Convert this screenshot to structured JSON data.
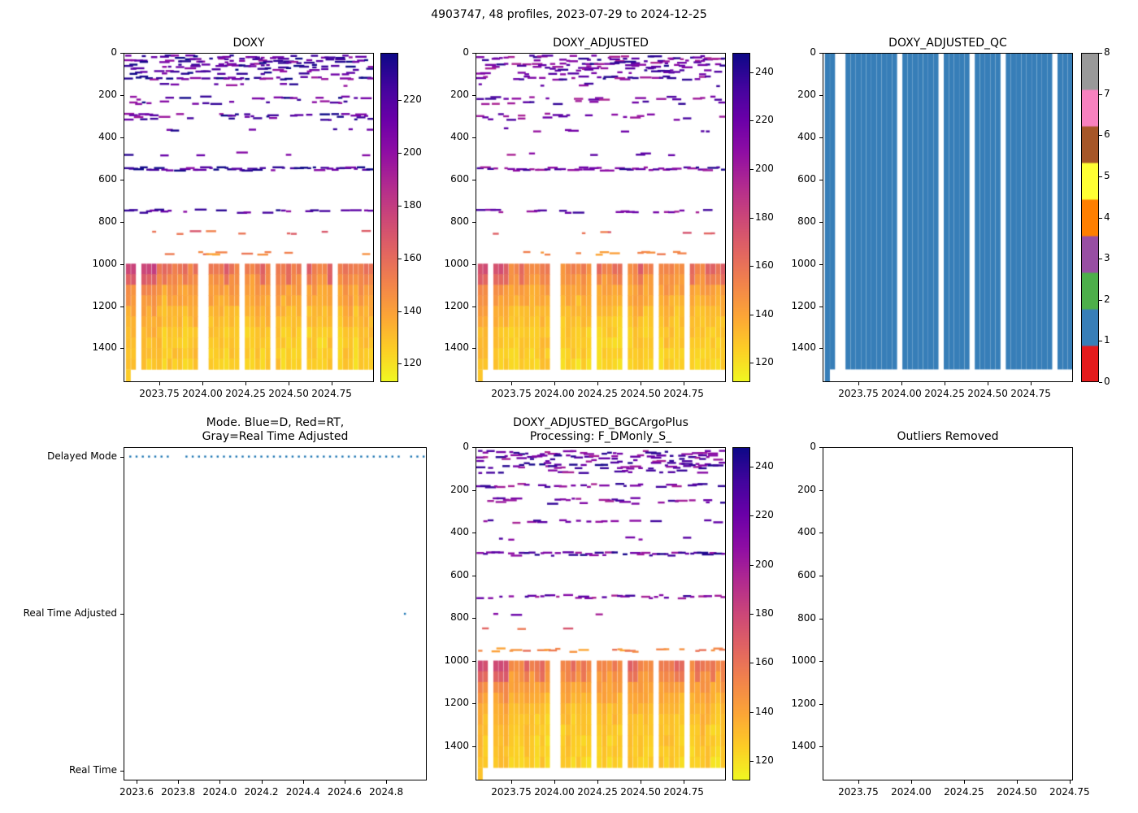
{
  "figure": {
    "title": "4903747, 48 profiles, 2023-07-29 to 2024-12-25",
    "background": "#ffffff",
    "text_color": "#000000"
  },
  "chart_data": [
    {
      "id": "doxy",
      "type": "heatmap",
      "title": "DOXY",
      "colormap": "plasma_r",
      "x": {
        "lim": [
          2023.5425,
          2024.995
        ],
        "tick_values": [
          2023.75,
          2024.0,
          2024.25,
          2024.5,
          2024.75
        ],
        "ticks": [
          "2023.75",
          "2024.00",
          "2024.25",
          "2024.50",
          "2024.75"
        ]
      },
      "y": {
        "lim": [
          0,
          1560
        ],
        "tick_values": [
          0,
          200,
          400,
          600,
          800,
          1000,
          1200,
          1400
        ],
        "ticks": [
          "0",
          "200",
          "400",
          "600",
          "800",
          "1000",
          "1200",
          "1400"
        ]
      },
      "colorbar": {
        "vmin": 113,
        "vmax": 238,
        "ticks": [
          120,
          140,
          160,
          180,
          200,
          220
        ]
      },
      "profiles": {
        "n": 48,
        "t0": 2023.57,
        "t1": 2024.98,
        "missing": [
          2,
          14,
          15,
          22,
          28,
          34,
          40
        ]
      },
      "shallow_dash_rows": [
        [
          20,
          0.5,
          195,
          245
        ],
        [
          35,
          0.55,
          195,
          245
        ],
        [
          50,
          0.5,
          195,
          245
        ],
        [
          65,
          0.5,
          200,
          245
        ],
        [
          80,
          0.45,
          195,
          240
        ],
        [
          95,
          0.4,
          195,
          240
        ],
        [
          120,
          0.62,
          195,
          245
        ],
        [
          150,
          0.18,
          195,
          240
        ],
        [
          215,
          0.38,
          195,
          240
        ],
        [
          235,
          0.3,
          195,
          240
        ],
        [
          295,
          0.45,
          195,
          240
        ],
        [
          310,
          0.22,
          195,
          240
        ],
        [
          365,
          0.12,
          195,
          235
        ],
        [
          480,
          0.07,
          195,
          235
        ],
        [
          550,
          0.92,
          200,
          245
        ],
        [
          750,
          0.55,
          195,
          240
        ],
        [
          850,
          0.12,
          150,
          175
        ],
        [
          950,
          0.18,
          138,
          158
        ]
      ],
      "deep_bands": [
        [
          1000,
          1050,
          152,
          176
        ],
        [
          1050,
          1100,
          146,
          166
        ],
        [
          1100,
          1150,
          141,
          150
        ],
        [
          1150,
          1200,
          137,
          144
        ],
        [
          1200,
          1250,
          133,
          140
        ],
        [
          1250,
          1300,
          130,
          136
        ],
        [
          1300,
          1350,
          128,
          133
        ],
        [
          1350,
          1400,
          127,
          131
        ],
        [
          1400,
          1450,
          126,
          130
        ],
        [
          1450,
          1500,
          125,
          129
        ]
      ],
      "first_profile_bottom": 1560,
      "seed": 11
    },
    {
      "id": "doxy-adjusted",
      "type": "heatmap",
      "title": "DOXY_ADJUSTED",
      "colormap": "plasma_r",
      "x": {
        "lim": [
          2023.5425,
          2024.995
        ],
        "tick_values": [
          2023.75,
          2024.0,
          2024.25,
          2024.5,
          2024.75
        ],
        "ticks": [
          "2023.75",
          "2024.00",
          "2024.25",
          "2024.50",
          "2024.75"
        ]
      },
      "y": {
        "lim": [
          0,
          1560
        ],
        "tick_values": [
          0,
          200,
          400,
          600,
          800,
          1000,
          1200,
          1400
        ],
        "ticks": [
          "0",
          "200",
          "400",
          "600",
          "800",
          "1000",
          "1200",
          "1400"
        ]
      },
      "colorbar": {
        "vmin": 112,
        "vmax": 248,
        "ticks": [
          120,
          140,
          160,
          180,
          200,
          220,
          240
        ]
      },
      "profiles": {
        "n": 48,
        "t0": 2023.57,
        "t1": 2024.98,
        "missing": [
          2,
          14,
          15,
          22,
          28,
          34,
          40
        ]
      },
      "shallow_dash_rows": [
        [
          20,
          0.45,
          195,
          245
        ],
        [
          35,
          0.5,
          195,
          245
        ],
        [
          50,
          0.45,
          195,
          245
        ],
        [
          65,
          0.45,
          200,
          245
        ],
        [
          80,
          0.4,
          195,
          240
        ],
        [
          95,
          0.36,
          195,
          240
        ],
        [
          120,
          0.56,
          195,
          245
        ],
        [
          150,
          0.16,
          195,
          240
        ],
        [
          215,
          0.34,
          195,
          240
        ],
        [
          235,
          0.27,
          195,
          240
        ],
        [
          295,
          0.4,
          195,
          240
        ],
        [
          310,
          0.2,
          195,
          240
        ],
        [
          365,
          0.11,
          195,
          235
        ],
        [
          480,
          0.06,
          195,
          235
        ],
        [
          550,
          0.9,
          200,
          245
        ],
        [
          750,
          0.5,
          195,
          240
        ],
        [
          850,
          0.11,
          150,
          175
        ],
        [
          950,
          0.16,
          138,
          158
        ]
      ],
      "deep_bands": [
        [
          1000,
          1050,
          152,
          176
        ],
        [
          1050,
          1100,
          146,
          166
        ],
        [
          1100,
          1150,
          141,
          150
        ],
        [
          1150,
          1200,
          137,
          144
        ],
        [
          1200,
          1250,
          133,
          140
        ],
        [
          1250,
          1300,
          130,
          136
        ],
        [
          1300,
          1350,
          128,
          133
        ],
        [
          1350,
          1400,
          127,
          131
        ],
        [
          1400,
          1450,
          126,
          130
        ],
        [
          1450,
          1500,
          125,
          129
        ]
      ],
      "first_profile_bottom": 1560,
      "seed": 23
    },
    {
      "id": "doxy-adjusted-qc",
      "type": "heatmap_qc",
      "title": "DOXY_ADJUSTED_QC",
      "x": {
        "lim": [
          2023.5425,
          2024.995
        ],
        "tick_values": [
          2023.75,
          2024.0,
          2024.25,
          2024.5,
          2024.75
        ],
        "ticks": [
          "2023.75",
          "2024.00",
          "2024.25",
          "2024.50",
          "2024.75"
        ]
      },
      "y": {
        "lim": [
          0,
          1560
        ],
        "tick_values": [
          0,
          200,
          400,
          600,
          800,
          1000,
          1200,
          1400
        ],
        "ticks": [
          "0",
          "200",
          "400",
          "600",
          "800",
          "1000",
          "1200",
          "1400"
        ]
      },
      "colorbar": {
        "ticks": [
          0,
          1,
          2,
          3,
          4,
          5,
          6,
          7,
          8
        ],
        "colors": [
          "#e41a1c",
          "#377eb8",
          "#4daf4a",
          "#984ea3",
          "#ff7f00",
          "#ffff33",
          "#a65628",
          "#f781bf",
          "#999999"
        ]
      },
      "qc_value": 1,
      "profiles": {
        "n": 48,
        "t0": 2023.57,
        "t1": 2024.98,
        "missing": [
          2,
          3,
          14,
          22,
          28,
          34,
          44
        ]
      },
      "column_bottom": 1500,
      "first_profile_bottom": 1560
    },
    {
      "id": "mode",
      "type": "scatter",
      "title": "Mode. Blue=D, Red=RT,\nGray=Real Time Adjusted",
      "x": {
        "lim": [
          2023.5375,
          2024.995
        ],
        "tick_values": [
          2023.6,
          2023.8,
          2024.0,
          2024.2,
          2024.4,
          2024.6,
          2024.8
        ],
        "ticks": [
          "2023.6",
          "2023.8",
          "2024.0",
          "2024.2",
          "2024.4",
          "2024.6",
          "2024.8"
        ]
      },
      "y": {
        "lim": [
          -0.06,
          2.06
        ],
        "categories": [
          "Real Time",
          "Real Time Adjusted",
          "Delayed Mode"
        ],
        "category_values": [
          0,
          1,
          2
        ]
      },
      "points": {
        "n": 48,
        "t0": 2023.57,
        "t1": 2024.98,
        "default_category": 2,
        "exceptions": [
          {
            "index": 44,
            "category": 1
          }
        ],
        "skip": [
          7,
          8
        ]
      },
      "dot_color": "#1f77b4"
    },
    {
      "id": "bgc",
      "type": "heatmap",
      "title": "DOXY_ADJUSTED_BGCArgoPlus\nProcessing: F_DMonly_S_",
      "colormap": "plasma_r",
      "x": {
        "lim": [
          2023.5425,
          2024.995
        ],
        "tick_values": [
          2023.75,
          2024.0,
          2024.25,
          2024.5,
          2024.75
        ],
        "ticks": [
          "2023.75",
          "2024.00",
          "2024.25",
          "2024.50",
          "2024.75"
        ]
      },
      "y": {
        "lim": [
          0,
          1560
        ],
        "tick_values": [
          0,
          200,
          400,
          600,
          800,
          1000,
          1200,
          1400
        ],
        "ticks": [
          "0",
          "200",
          "400",
          "600",
          "800",
          "1000",
          "1200",
          "1400"
        ]
      },
      "colorbar": {
        "vmin": 112,
        "vmax": 248,
        "ticks": [
          120,
          140,
          160,
          180,
          200,
          220,
          240
        ]
      },
      "profiles": {
        "n": 48,
        "t0": 2023.57,
        "t1": 2024.98,
        "missing": [
          2,
          14,
          15,
          22,
          28,
          34,
          40
        ]
      },
      "shallow_dash_rows": [
        [
          25,
          0.5,
          195,
          245
        ],
        [
          45,
          0.6,
          195,
          245
        ],
        [
          60,
          0.45,
          195,
          245
        ],
        [
          80,
          0.55,
          210,
          248
        ],
        [
          95,
          0.35,
          200,
          245
        ],
        [
          115,
          0.25,
          195,
          240
        ],
        [
          180,
          0.45,
          195,
          240
        ],
        [
          245,
          0.5,
          195,
          240
        ],
        [
          260,
          0.35,
          195,
          240
        ],
        [
          350,
          0.38,
          195,
          240
        ],
        [
          430,
          0.1,
          195,
          235
        ],
        [
          500,
          0.93,
          200,
          246
        ],
        [
          700,
          0.55,
          195,
          240
        ],
        [
          780,
          0.08,
          195,
          235
        ],
        [
          850,
          0.12,
          150,
          175
        ],
        [
          950,
          0.5,
          138,
          162
        ]
      ],
      "deep_bands": [
        [
          1000,
          1050,
          152,
          176
        ],
        [
          1050,
          1100,
          146,
          166
        ],
        [
          1100,
          1150,
          141,
          150
        ],
        [
          1150,
          1200,
          137,
          144
        ],
        [
          1200,
          1250,
          133,
          140
        ],
        [
          1250,
          1300,
          130,
          136
        ],
        [
          1300,
          1350,
          128,
          133
        ],
        [
          1350,
          1400,
          127,
          131
        ],
        [
          1400,
          1450,
          126,
          130
        ],
        [
          1450,
          1500,
          125,
          129
        ]
      ],
      "first_profile_bottom": 1560,
      "seed": 37
    },
    {
      "id": "outliers",
      "type": "empty",
      "title": "Outliers Removed",
      "x": {
        "lim": [
          2023.581,
          2024.766
        ],
        "tick_values": [
          2023.75,
          2024.0,
          2024.25,
          2024.5,
          2024.75
        ],
        "ticks": [
          "2023.75",
          "2024.00",
          "2024.25",
          "2024.50",
          "2024.75"
        ]
      },
      "y": {
        "lim": [
          0,
          1558
        ],
        "tick_values": [
          0,
          200,
          400,
          600,
          800,
          1000,
          1200,
          1400
        ],
        "ticks": [
          "0",
          "200",
          "400",
          "600",
          "800",
          "1000",
          "1200",
          "1400"
        ]
      }
    }
  ]
}
